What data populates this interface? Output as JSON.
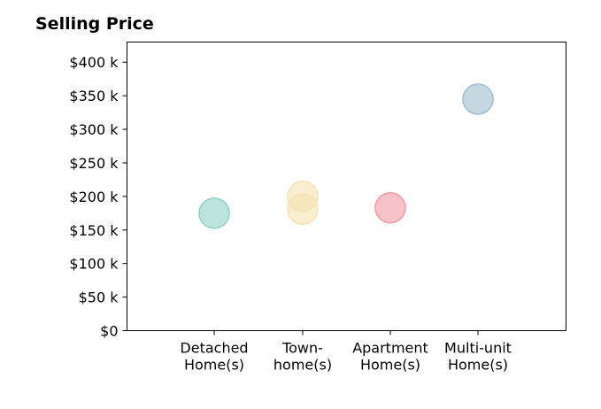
{
  "chart_data": {
    "type": "scatter",
    "title": "Selling Price",
    "xlabel": "",
    "ylabel": "",
    "categories": [
      [
        "Detached",
        "Home(s)"
      ],
      [
        "Town-",
        "home(s)"
      ],
      [
        "Apartment",
        "Home(s)"
      ],
      [
        "Multi-unit",
        "Home(s)"
      ]
    ],
    "ylim": [
      0,
      430000
    ],
    "yticks": [
      0,
      50000,
      100000,
      150000,
      200000,
      250000,
      300000,
      350000,
      400000
    ],
    "ytick_labels": [
      "$0",
      "$50 k",
      "$100 k",
      "$150 k",
      "$200 k",
      "$250 k",
      "$300 k",
      "$350 k",
      "$400 k"
    ],
    "grid": false,
    "points": [
      {
        "category": 0,
        "y": 175000,
        "color": "#8fd0c4"
      },
      {
        "category": 1,
        "y": 200000,
        "color": "#f5e2b0"
      },
      {
        "category": 1,
        "y": 181000,
        "color": "#f5e2b0"
      },
      {
        "category": 2,
        "y": 183000,
        "color": "#f29aa2"
      },
      {
        "category": 3,
        "y": 345000,
        "color": "#9fbccd"
      }
    ]
  }
}
